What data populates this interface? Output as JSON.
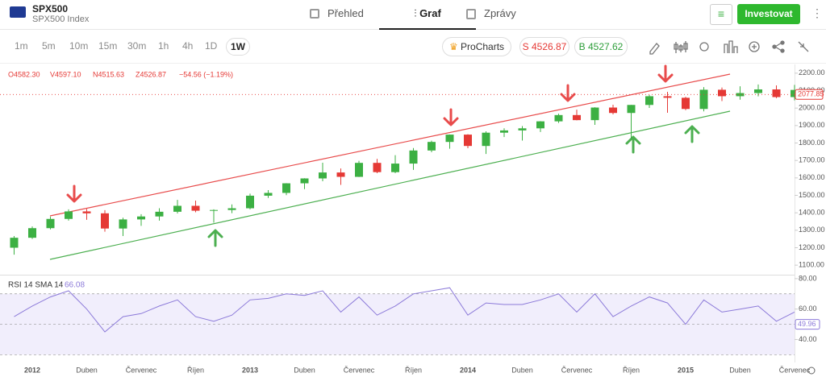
{
  "header": {
    "symbol": "SPX500",
    "name": "SPX500 Index",
    "tabs": [
      "Přehled",
      "Graf",
      "Zprávy"
    ],
    "invest": "Investovat"
  },
  "toolbar": {
    "timeframes": [
      "1m",
      "5m",
      "10m",
      "15m",
      "30m",
      "1h",
      "4h",
      "1D",
      "1W"
    ],
    "procharts": "ProCharts",
    "sell": "S 4526.87",
    "buy": "B 4527.62"
  },
  "chart_data": {
    "type": "candlestick",
    "ohlc_legend": [
      "O4582.30",
      "V4597.10",
      "N4515.63",
      "Z4526.87",
      "−54.56 (−1.19%)"
    ],
    "up_color": "#3cb043",
    "down_color": "#e53935",
    "xlim": [
      "2011-12",
      "2015-07"
    ],
    "x": [
      "2011-12",
      "2012-01",
      "2012-02",
      "2012-03",
      "2012-04",
      "2012-05",
      "2012-06",
      "2012-07",
      "2012-08",
      "2012-09",
      "2012-10",
      "2012-11",
      "2012-12",
      "2013-01",
      "2013-02",
      "2013-03",
      "2013-04",
      "2013-05",
      "2013-06",
      "2013-07",
      "2013-08",
      "2013-09",
      "2013-10",
      "2013-11",
      "2013-12",
      "2014-01",
      "2014-02",
      "2014-03",
      "2014-04",
      "2014-05",
      "2014-06",
      "2014-07",
      "2014-08",
      "2014-09",
      "2014-10",
      "2014-11",
      "2014-12",
      "2015-01",
      "2015-02",
      "2015-03",
      "2015-04",
      "2015-05",
      "2015-06",
      "2015-07"
    ],
    "ohlc": [
      [
        1200,
        1267,
        1160,
        1257
      ],
      [
        1257,
        1322,
        1250,
        1312
      ],
      [
        1312,
        1378,
        1305,
        1365
      ],
      [
        1365,
        1420,
        1355,
        1408
      ],
      [
        1408,
        1422,
        1360,
        1397
      ],
      [
        1397,
        1415,
        1292,
        1310
      ],
      [
        1310,
        1372,
        1267,
        1362
      ],
      [
        1362,
        1392,
        1325,
        1379
      ],
      [
        1379,
        1426,
        1355,
        1406
      ],
      [
        1406,
        1474,
        1396,
        1440
      ],
      [
        1440,
        1470,
        1403,
        1412
      ],
      [
        1412,
        1420,
        1343,
        1416
      ],
      [
        1416,
        1448,
        1398,
        1426
      ],
      [
        1426,
        1510,
        1420,
        1498
      ],
      [
        1498,
        1530,
        1485,
        1514
      ],
      [
        1514,
        1570,
        1501,
        1569
      ],
      [
        1569,
        1598,
        1536,
        1597
      ],
      [
        1597,
        1687,
        1581,
        1631
      ],
      [
        1631,
        1654,
        1560,
        1606
      ],
      [
        1606,
        1698,
        1605,
        1686
      ],
      [
        1686,
        1709,
        1627,
        1633
      ],
      [
        1633,
        1730,
        1627,
        1682
      ],
      [
        1682,
        1771,
        1646,
        1757
      ],
      [
        1757,
        1813,
        1747,
        1806
      ],
      [
        1806,
        1849,
        1767,
        1848
      ],
      [
        1848,
        1850,
        1770,
        1783
      ],
      [
        1783,
        1867,
        1737,
        1859
      ],
      [
        1859,
        1884,
        1834,
        1872
      ],
      [
        1872,
        1897,
        1814,
        1884
      ],
      [
        1884,
        1925,
        1863,
        1924
      ],
      [
        1924,
        1968,
        1915,
        1960
      ],
      [
        1960,
        1991,
        1930,
        1931
      ],
      [
        1931,
        2005,
        1904,
        2003
      ],
      [
        2003,
        2019,
        1964,
        1972
      ],
      [
        1972,
        2018,
        1821,
        2018
      ],
      [
        2018,
        2075,
        2001,
        2068
      ],
      [
        2068,
        2093,
        1973,
        2059
      ],
      [
        2059,
        2064,
        1988,
        1995
      ],
      [
        1995,
        2120,
        1981,
        2105
      ],
      [
        2105,
        2118,
        2040,
        2068
      ],
      [
        2068,
        2125,
        2048,
        2086
      ],
      [
        2086,
        2135,
        2067,
        2107
      ],
      [
        2107,
        2130,
        2057,
        2063
      ],
      [
        2063,
        2133,
        2044,
        2104
      ]
    ],
    "ylim": [
      1050,
      2250
    ],
    "yticks": [
      {
        "value": 2200,
        "label": "2200.00"
      },
      {
        "value": 2100,
        "label": "2100.00"
      },
      {
        "value": 2000,
        "label": "2000.00"
      },
      {
        "value": 1900,
        "label": "1900.00"
      },
      {
        "value": 1800,
        "label": "1800.00"
      },
      {
        "value": 1700,
        "label": "1700.00"
      },
      {
        "value": 1600,
        "label": "1600.00"
      },
      {
        "value": 1500,
        "label": "1500.00"
      },
      {
        "value": 1400,
        "label": "1400.00"
      },
      {
        "value": 1300,
        "label": "1300.00"
      },
      {
        "value": 1200,
        "label": "1200.00"
      },
      {
        "value": 1100,
        "label": "1100.00"
      }
    ],
    "last_price": 2077.85,
    "xticks": [
      {
        "value": "2012-01",
        "label": "2012"
      },
      {
        "value": "2012-04",
        "label": "Duben"
      },
      {
        "value": "2012-07",
        "label": "Červenec"
      },
      {
        "value": "2012-10",
        "label": "Říjen"
      },
      {
        "value": "2013-01",
        "label": "2013"
      },
      {
        "value": "2013-04",
        "label": "Duben"
      },
      {
        "value": "2013-07",
        "label": "Červenec"
      },
      {
        "value": "2013-10",
        "label": "Říjen"
      },
      {
        "value": "2014-01",
        "label": "2014"
      },
      {
        "value": "2014-04",
        "label": "Duben"
      },
      {
        "value": "2014-07",
        "label": "Červenec"
      },
      {
        "value": "2014-10",
        "label": "Říjen"
      },
      {
        "value": "2015-01",
        "label": "2015"
      },
      {
        "value": "2015-04",
        "label": "Duben"
      },
      {
        "value": "2015-07",
        "label": "Červenec"
      }
    ],
    "rsi": {
      "label": "RSI 14 SMA 14",
      "current": 66.08,
      "last": 49.96,
      "color": "#8c7ad9",
      "values": [
        55,
        62,
        68,
        72,
        60,
        45,
        55,
        57,
        62,
        66,
        55,
        52,
        56,
        66,
        67,
        70,
        69,
        72,
        58,
        68,
        56,
        62,
        70,
        72,
        74,
        56,
        64,
        63,
        63,
        66,
        70,
        58,
        70,
        55,
        62,
        68,
        64,
        50,
        66,
        58,
        60,
        62,
        52,
        58
      ],
      "ylim": [
        27,
        81
      ],
      "yticks": [
        {
          "value": 80,
          "label": "80.00"
        },
        {
          "value": 60,
          "label": "60.00"
        },
        {
          "value": 40,
          "label": "40.00"
        }
      ],
      "band": [
        70,
        30
      ],
      "midline": 50
    }
  }
}
